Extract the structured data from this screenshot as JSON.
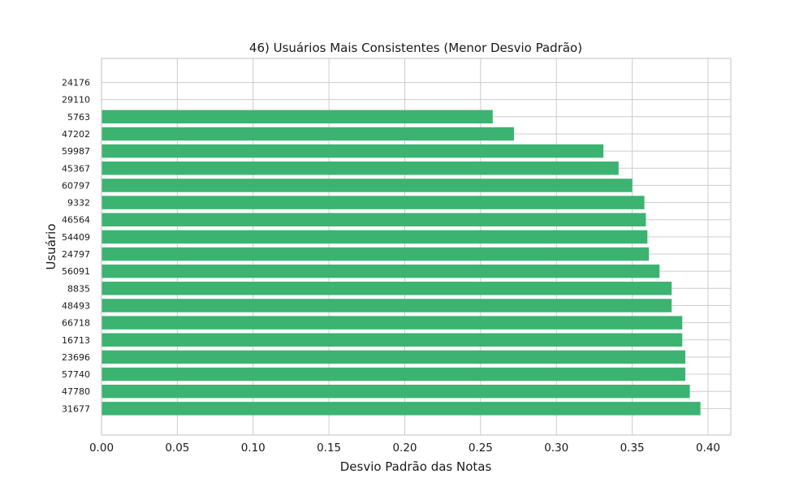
{
  "colors": {
    "bar": "#3cb371"
  },
  "chart_data": {
    "type": "bar",
    "orientation": "horizontal",
    "title": "46) Usuários Mais Consistentes (Menor Desvio Padrão)",
    "xlabel": "Desvio Padrão das Notas",
    "ylabel": "Usuário",
    "xlim": [
      0,
      0.415
    ],
    "xticks": [
      "0.00",
      "0.05",
      "0.10",
      "0.15",
      "0.20",
      "0.25",
      "0.30",
      "0.35",
      "0.40"
    ],
    "grid": true,
    "categories": [
      "24176",
      "29110",
      "5763",
      "47202",
      "59987",
      "45367",
      "60797",
      "9332",
      "46564",
      "54409",
      "24797",
      "56091",
      "8835",
      "48493",
      "66718",
      "16713",
      "23696",
      "57740",
      "47780",
      "31677"
    ],
    "values": [
      0.0,
      0.0,
      0.258,
      0.272,
      0.331,
      0.341,
      0.35,
      0.358,
      0.359,
      0.36,
      0.361,
      0.368,
      0.376,
      0.376,
      0.383,
      0.383,
      0.385,
      0.385,
      0.388,
      0.395
    ]
  }
}
